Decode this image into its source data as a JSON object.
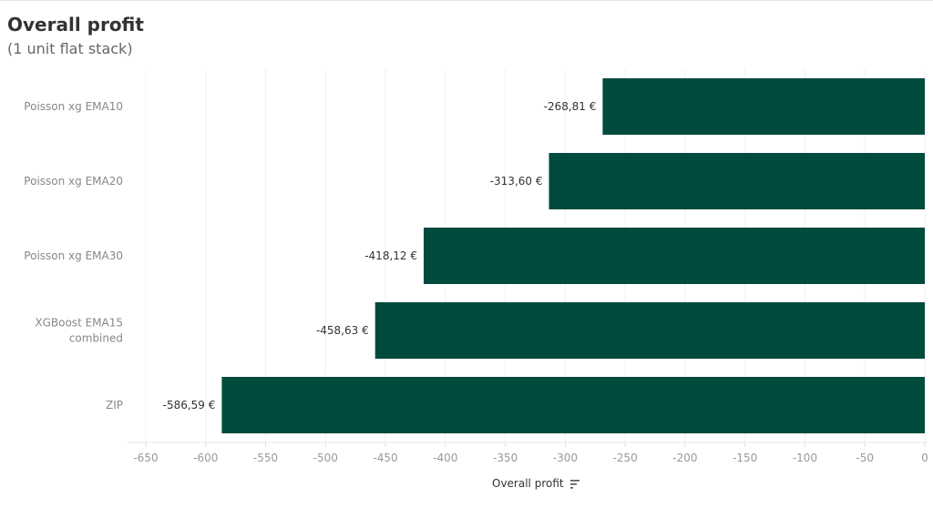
{
  "header": {
    "title": "Overall profit",
    "subtitle": "(1 unit flat stack)"
  },
  "chart_data": {
    "type": "bar",
    "orientation": "horizontal",
    "title": "Overall profit",
    "subtitle": "(1 unit flat stack)",
    "xlabel": "Overall profit",
    "ylabel": "",
    "categories": [
      [
        "Poisson xg EMA10"
      ],
      [
        "Poisson xg EMA20"
      ],
      [
        "Poisson xg EMA30"
      ],
      [
        "XGBoost EMA15",
        "combined"
      ],
      [
        "ZIP"
      ]
    ],
    "values": [
      -268.81,
      -313.6,
      -418.12,
      -458.63,
      -586.59
    ],
    "value_labels": [
      "-268,81 €",
      "-313,60 €",
      "-418,12 €",
      "-458,63 €",
      "-586,59 €"
    ],
    "xlim": [
      -665,
      0
    ],
    "xticks": [
      -650,
      -600,
      -550,
      -500,
      -450,
      -400,
      -350,
      -300,
      -250,
      -200,
      -150,
      -100,
      -50,
      0
    ],
    "grid": true,
    "bar_color": "#004b3e"
  }
}
